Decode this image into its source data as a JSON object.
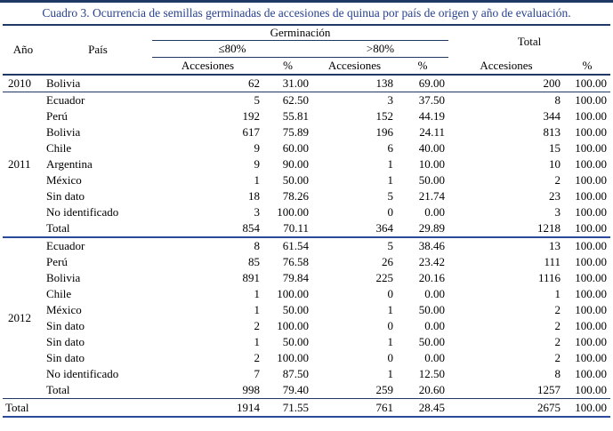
{
  "title": "Cuadro 3. Ocurrencia de semillas germinadas de accesiones de quinua por país de origen y año de evaluación.",
  "header": {
    "year": "Año",
    "country": "País",
    "germination": "Germinación",
    "le80": "≤80%",
    "gt80": ">80%",
    "accessions": "Accesiones",
    "percent": "%",
    "total": "Total"
  },
  "groups": [
    {
      "year": "2010",
      "rows": [
        [
          "Bolivia",
          "62",
          "31.00",
          "138",
          "69.00",
          "200",
          "100.00"
        ]
      ]
    },
    {
      "year": "2011",
      "rows": [
        [
          "Ecuador",
          "5",
          "62.50",
          "3",
          "37.50",
          "8",
          "100.00"
        ],
        [
          "Perú",
          "192",
          "55.81",
          "152",
          "44.19",
          "344",
          "100.00"
        ],
        [
          "Bolivia",
          "617",
          "75.89",
          "196",
          "24.11",
          "813",
          "100.00"
        ],
        [
          "Chile",
          "9",
          "60.00",
          "6",
          "40.00",
          "15",
          "100.00"
        ],
        [
          "Argentina",
          "9",
          "90.00",
          "1",
          "10.00",
          "10",
          "100.00"
        ],
        [
          "México",
          "1",
          "50.00",
          "1",
          "50.00",
          "2",
          "100.00"
        ],
        [
          "Sin dato",
          "18",
          "78.26",
          "5",
          "21.74",
          "23",
          "100.00"
        ],
        [
          "No identificado",
          "3",
          "100.00",
          "0",
          "0.00",
          "3",
          "100.00"
        ],
        [
          "Total",
          "854",
          "70.11",
          "364",
          "29.89",
          "1218",
          "100.00"
        ]
      ]
    },
    {
      "year": "2012",
      "rows": [
        [
          "Ecuador",
          "8",
          "61.54",
          "5",
          "38.46",
          "13",
          "100.00"
        ],
        [
          "Perú",
          "85",
          "76.58",
          "26",
          "23.42",
          "111",
          "100.00"
        ],
        [
          "Bolivia",
          "891",
          "79.84",
          "225",
          "20.16",
          "1116",
          "100.00"
        ],
        [
          "Chile",
          "1",
          "100.00",
          "0",
          "0.00",
          "1",
          "100.00"
        ],
        [
          "México",
          "1",
          "50.00",
          "1",
          "50.00",
          "2",
          "100.00"
        ],
        [
          "Sin dato",
          "2",
          "100.00",
          "0",
          "0.00",
          "2",
          "100.00"
        ],
        [
          "Sin dato",
          "1",
          "50.00",
          "1",
          "50.00",
          "2",
          "100.00"
        ],
        [
          "Sin dato",
          "2",
          "100.00",
          "0",
          "0.00",
          "2",
          "100.00"
        ],
        [
          "No identificado",
          "7",
          "87.50",
          "1",
          "12.50",
          "8",
          "100.00"
        ],
        [
          "Total",
          "998",
          "79.40",
          "259",
          "20.60",
          "1257",
          "100.00"
        ]
      ]
    }
  ],
  "grand_total": {
    "label": "Total",
    "values": [
      "1914",
      "71.55",
      "761",
      "28.45",
      "2675",
      "100.00"
    ]
  },
  "colors": {
    "title_text": "#27418f",
    "rule_lines": "#1f3864",
    "strong_rule_lines": "#2a4a9b",
    "body_text": "#000000",
    "background": "#ffffff"
  }
}
